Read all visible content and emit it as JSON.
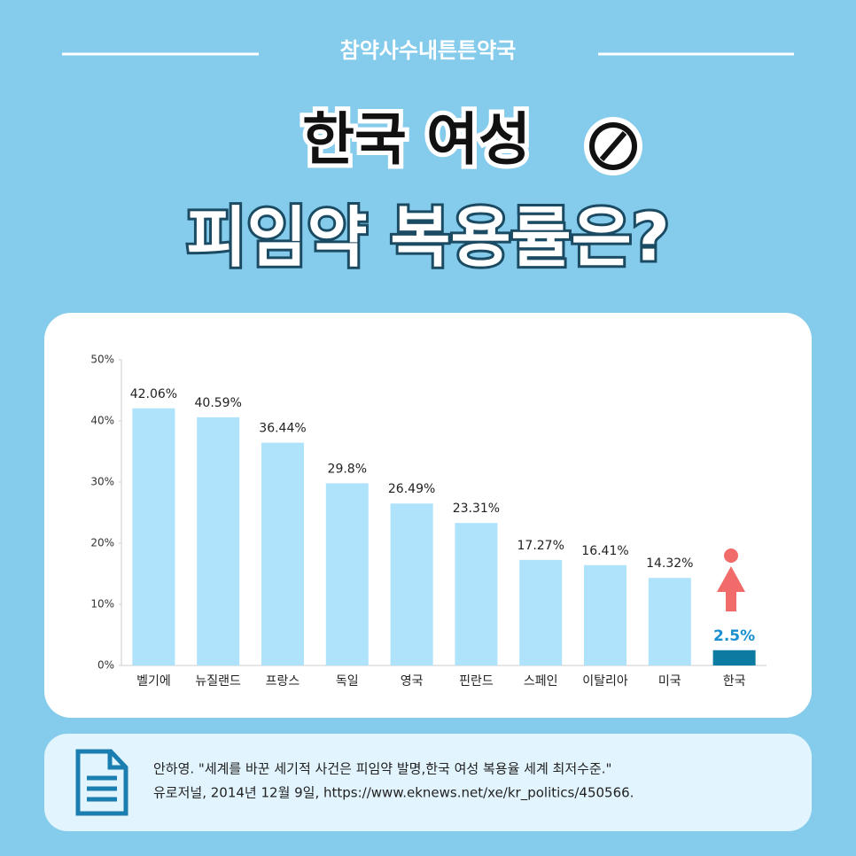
{
  "header": {
    "brand": "참약사수내튼튼약국",
    "title_line1": "한국 여성",
    "title_line2": "피임약 복용률은?"
  },
  "chart_data": {
    "type": "bar",
    "categories": [
      "벨기에",
      "뉴질랜드",
      "프랑스",
      "독일",
      "영국",
      "핀란드",
      "스페인",
      "이탈리아",
      "미국",
      "한국"
    ],
    "values": [
      42.06,
      40.59,
      36.44,
      29.8,
      26.49,
      23.31,
      17.27,
      16.41,
      14.32,
      2.5
    ],
    "value_labels": [
      "42.06%",
      "40.59%",
      "36.44%",
      "29.8%",
      "26.49%",
      "23.31%",
      "17.27%",
      "16.41%",
      "14.32%",
      "2.5%"
    ],
    "colors": [
      "#aee3fb",
      "#aee3fb",
      "#aee3fb",
      "#aee3fb",
      "#aee3fb",
      "#aee3fb",
      "#aee3fb",
      "#aee3fb",
      "#aee3fb",
      "#0b7ba2"
    ],
    "label_colors": [
      "#222222",
      "#222222",
      "#222222",
      "#222222",
      "#222222",
      "#222222",
      "#222222",
      "#222222",
      "#222222",
      "#1a90d0"
    ],
    "ylim": [
      0,
      50
    ],
    "yticks": [
      {
        "value": 0,
        "label": "0%"
      },
      {
        "value": 10,
        "label": "10%"
      },
      {
        "value": 20,
        "label": "20%"
      },
      {
        "value": 30,
        "label": "30%"
      },
      {
        "value": 40,
        "label": "40%"
      },
      {
        "value": 50,
        "label": "50%"
      }
    ]
  },
  "source": {
    "line1": "안하영. \"세계를 바꾼 세기적 사건은 피임약 발명,한국 여성 복용율 세계 최저수준.\"",
    "line2": "유로저널, 2014년 12월 9일, https://www.eknews.net/xe/kr_politics/450566."
  }
}
